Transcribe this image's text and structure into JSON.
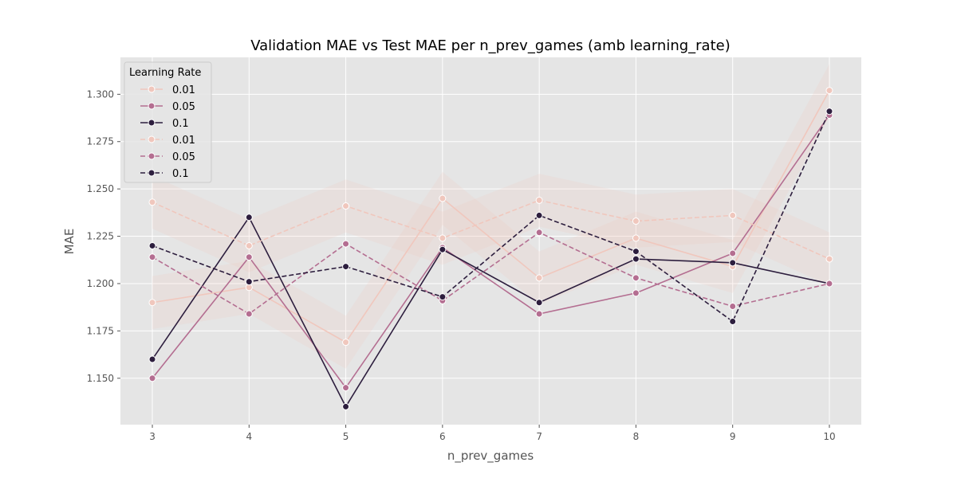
{
  "chart_data": {
    "type": "line",
    "title": "Validation MAE vs Test MAE per n_prev_games (amb learning_rate)",
    "xlabel": "n_prev_games",
    "ylabel": "MAE",
    "x": [
      3,
      4,
      5,
      6,
      7,
      8,
      9,
      10
    ],
    "xlim": [
      2.67,
      10.33
    ],
    "ylim": [
      1.1255,
      1.3195
    ],
    "yticks": [
      1.15,
      1.175,
      1.2,
      1.225,
      1.25,
      1.275,
      1.3
    ],
    "ytick_labels": [
      "1.150",
      "1.175",
      "1.200",
      "1.225",
      "1.250",
      "1.275",
      "1.300"
    ],
    "xtick_labels": [
      "3",
      "4",
      "5",
      "6",
      "7",
      "8",
      "9",
      "10"
    ],
    "grid": true,
    "legend": {
      "title": "Learning Rate",
      "placement": "top-left"
    },
    "series": [
      {
        "name": "0.01",
        "style": "solid",
        "color": "#f0c7bd",
        "values": [
          1.19,
          1.198,
          1.169,
          1.245,
          1.203,
          1.224,
          1.209,
          1.302
        ]
      },
      {
        "name": "0.05",
        "style": "solid",
        "color": "#b46e91",
        "values": [
          1.15,
          1.214,
          1.145,
          1.219,
          1.184,
          1.195,
          1.216,
          1.289
        ]
      },
      {
        "name": "0.1",
        "style": "solid",
        "color": "#2d1e3e",
        "values": [
          1.16,
          1.235,
          1.135,
          1.218,
          1.19,
          1.213,
          1.211,
          1.2
        ]
      },
      {
        "name": "0.01",
        "style": "dashed",
        "color": "#f0c7bd",
        "values": [
          1.243,
          1.22,
          1.241,
          1.224,
          1.244,
          1.233,
          1.236,
          1.213
        ]
      },
      {
        "name": "0.05",
        "style": "dashed",
        "color": "#b46e91",
        "values": [
          1.214,
          1.184,
          1.221,
          1.191,
          1.227,
          1.203,
          1.188,
          1.2
        ]
      },
      {
        "name": "0.1",
        "style": "dashed",
        "color": "#2d1e3e",
        "values": [
          1.22,
          1.201,
          1.209,
          1.193,
          1.236,
          1.217,
          1.18,
          1.291
        ]
      }
    ]
  }
}
